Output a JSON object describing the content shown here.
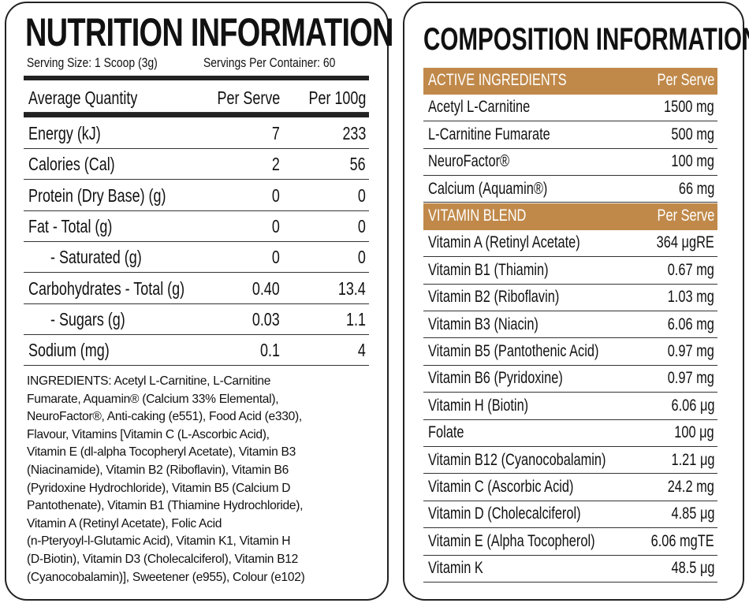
{
  "nutrition": {
    "title": "NUTRITION INFORMATION",
    "serving_size": "Serving Size: 1 Scoop (3g)",
    "servings_per_container": "Servings Per Container: 60",
    "header": {
      "label": "Average Quantity",
      "per_serve": "Per Serve",
      "per_100g": "Per 100g"
    },
    "rows": [
      {
        "label": "Energy (kJ)",
        "per_serve": "7",
        "per_100g": "233"
      },
      {
        "label": "Calories (Cal)",
        "per_serve": "2",
        "per_100g": "56"
      },
      {
        "label": "Protein (Dry Base) (g)",
        "per_serve": "0",
        "per_100g": "0"
      },
      {
        "label": "Fat - Total (g)",
        "per_serve": "0",
        "per_100g": "0"
      },
      {
        "label": "- Saturated (g)",
        "per_serve": "0",
        "per_100g": "0"
      },
      {
        "label": "Carbohydrates - Total (g)",
        "per_serve": "0.40",
        "per_100g": "13.4"
      },
      {
        "label": "- Sugars (g)",
        "per_serve": "0.03",
        "per_100g": "1.1"
      },
      {
        "label": "Sodium (mg)",
        "per_serve": "0.1",
        "per_100g": "4"
      }
    ],
    "ingredients_lines": [
      "INGREDIENTS: Acetyl L-Carnitine, L-Carnitine",
      "Fumarate, Aquamin® (Calcium 33% Elemental),",
      "NeuroFactor®, Anti-caking (e551), Food Acid (e330),",
      "Flavour, Vitamins [Vitamin C (L-Ascorbic Acid),",
      "Vitamin E (dl-alpha Tocopheryl Acetate), Vitamin B3",
      "(Niacinamide), Vitamin B2 (Riboflavin), Vitamin B6",
      "(Pyridoxine Hydrochloride), Vitamin B5 (Calcium D",
      "Pantothenate), Vitamin B1 (Thiamine Hydrochloride),",
      "Vitamin A (Retinyl Acetate), Folic Acid",
      "(n-Pteryoyl-l-Glutamic Acid), Vitamin K1, Vitamin H",
      "(D-Biotin), Vitamin D3 (Cholecalciferol), Vitamin B12",
      "(Cyanocobalamin)], Sweetener (e955), Colour (e102)"
    ]
  },
  "composition": {
    "title": "COMPOSITION INFORMATION",
    "accent_color": "#c0894a",
    "active": {
      "header": "ACTIVE INGREDIENTS",
      "header_value": "Per Serve",
      "rows": [
        {
          "label": "Acetyl L-Carnitine",
          "value": "1500 mg"
        },
        {
          "label": "L-Carnitine Fumarate",
          "value": "500 mg"
        },
        {
          "label": "NeuroFactor®",
          "value": "100 mg"
        },
        {
          "label": "Calcium (Aquamin®)",
          "value": "66 mg"
        }
      ]
    },
    "vitamins": {
      "header": "VITAMIN BLEND",
      "header_value": "Per Serve",
      "rows": [
        {
          "label": "Vitamin A (Retinyl Acetate)",
          "value": "364 μgRE"
        },
        {
          "label": "Vitamin B1 (Thiamin)",
          "value": "0.67 mg"
        },
        {
          "label": "Vitamin B2 (Riboflavin)",
          "value": "1.03 mg"
        },
        {
          "label": "Vitamin B3 (Niacin)",
          "value": "6.06 mg"
        },
        {
          "label": "Vitamin B5 (Pantothenic Acid)",
          "value": "0.97 mg"
        },
        {
          "label": "Vitamin B6 (Pyridoxine)",
          "value": "0.97 mg"
        },
        {
          "label": "Vitamin H (Biotin)",
          "value": "6.06 μg"
        },
        {
          "label": "Folate",
          "value": "100 μg"
        },
        {
          "label": "Vitamin B12 (Cyanocobalamin)",
          "value": "1.21 μg"
        },
        {
          "label": "Vitamin C (Ascorbic Acid)",
          "value": "24.2 mg"
        },
        {
          "label": "Vitamin D (Cholecalciferol)",
          "value": "4.85 μg"
        },
        {
          "label": "Vitamin E (Alpha Tocopherol)",
          "value": "6.06 mgTE"
        },
        {
          "label": "Vitamin K",
          "value": "48.5 μg"
        }
      ]
    }
  }
}
